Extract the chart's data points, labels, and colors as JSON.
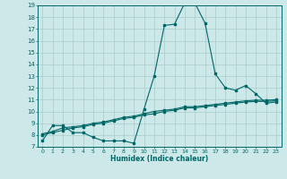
{
  "xlabel": "Humidex (Indice chaleur)",
  "bg_color": "#cce8e8",
  "grid_color": "#aacccc",
  "line_color": "#006666",
  "xlim": [
    -0.5,
    23.5
  ],
  "ylim": [
    7,
    19
  ],
  "yticks": [
    7,
    8,
    9,
    10,
    11,
    12,
    13,
    14,
    15,
    16,
    17,
    18,
    19
  ],
  "xticks": [
    0,
    1,
    2,
    3,
    4,
    5,
    6,
    7,
    8,
    9,
    10,
    11,
    12,
    13,
    14,
    15,
    16,
    17,
    18,
    19,
    20,
    21,
    22,
    23
  ],
  "line1_x": [
    0,
    1,
    2,
    3,
    4,
    5,
    6,
    7,
    8,
    9,
    10,
    11,
    12,
    13,
    14,
    15,
    16,
    17,
    18,
    19,
    20,
    21,
    22,
    23
  ],
  "line1_y": [
    7.5,
    8.8,
    8.8,
    8.2,
    8.2,
    7.8,
    7.5,
    7.5,
    7.5,
    7.3,
    10.2,
    13.0,
    17.3,
    17.4,
    19.2,
    19.2,
    17.5,
    13.2,
    12.0,
    11.8,
    12.2,
    11.5,
    10.7,
    10.8
  ],
  "line2_x": [
    0,
    1,
    2,
    3,
    4,
    5,
    6,
    7,
    8,
    9,
    10,
    11,
    12,
    13,
    14,
    15,
    16,
    17,
    18,
    19,
    20,
    21,
    22,
    23
  ],
  "line2_y": [
    8.1,
    8.3,
    8.6,
    8.7,
    8.8,
    9.0,
    9.1,
    9.3,
    9.5,
    9.6,
    9.8,
    10.0,
    10.1,
    10.2,
    10.4,
    10.4,
    10.5,
    10.6,
    10.7,
    10.8,
    10.9,
    10.95,
    10.95,
    11.0
  ],
  "line3_x": [
    0,
    1,
    2,
    3,
    4,
    5,
    6,
    7,
    8,
    9,
    10,
    11,
    12,
    13,
    14,
    15,
    16,
    17,
    18,
    19,
    20,
    21,
    22,
    23
  ],
  "line3_y": [
    8.0,
    8.2,
    8.4,
    8.6,
    8.7,
    8.9,
    9.0,
    9.2,
    9.4,
    9.5,
    9.7,
    9.8,
    10.0,
    10.1,
    10.3,
    10.3,
    10.4,
    10.5,
    10.6,
    10.7,
    10.8,
    10.85,
    10.85,
    10.9
  ]
}
